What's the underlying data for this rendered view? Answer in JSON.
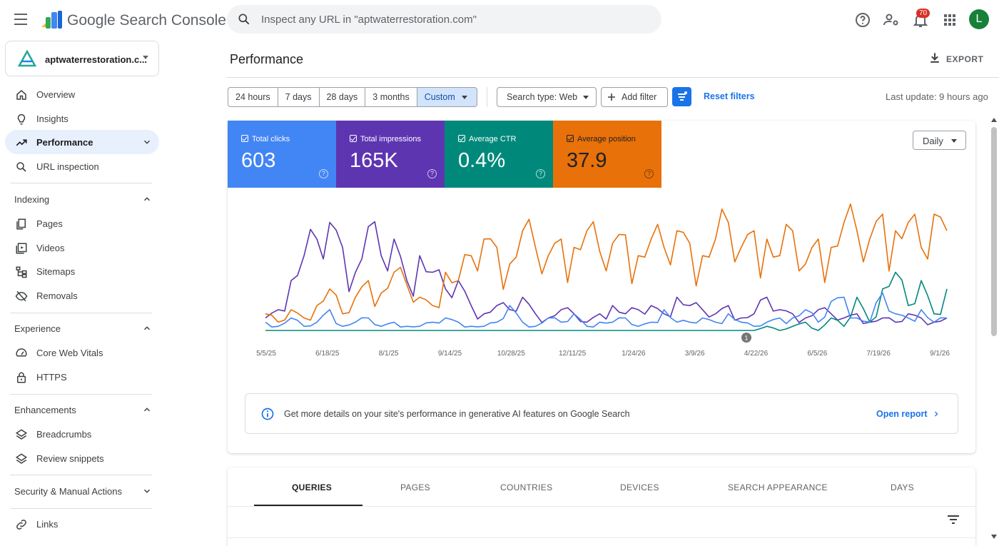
{
  "app": {
    "brand": "Google Search Console"
  },
  "search": {
    "placeholder": "Inspect any URL in \"aptwaterrestoration.com\""
  },
  "header": {
    "notifications_count": "70",
    "avatar_letter": "L"
  },
  "property": {
    "name": "aptwaterrestoration.c..."
  },
  "sidebar": {
    "items": [
      {
        "label": "Overview"
      },
      {
        "label": "Insights"
      },
      {
        "label": "Performance"
      },
      {
        "label": "URL inspection"
      }
    ],
    "indexing": {
      "title": "Indexing",
      "items": [
        {
          "label": "Pages"
        },
        {
          "label": "Videos"
        },
        {
          "label": "Sitemaps"
        },
        {
          "label": "Removals"
        }
      ]
    },
    "experience": {
      "title": "Experience",
      "items": [
        {
          "label": "Core Web Vitals"
        },
        {
          "label": "HTTPS"
        }
      ]
    },
    "enhancements": {
      "title": "Enhancements",
      "items": [
        {
          "label": "Breadcrumbs"
        },
        {
          "label": "Review snippets"
        }
      ]
    },
    "security": {
      "title": "Security & Manual Actions"
    },
    "links": {
      "label": "Links"
    }
  },
  "page": {
    "title": "Performance",
    "export_label": "EXPORT"
  },
  "filters": {
    "ranges": [
      "24 hours",
      "7 days",
      "28 days",
      "3 months",
      "Custom"
    ],
    "search_type": "Search type: Web",
    "add_filter": "Add filter",
    "reset": "Reset filters",
    "last_update": "Last update: 9 hours ago"
  },
  "metrics": [
    {
      "label": "Total clicks",
      "value": "603",
      "color": "#4285f4"
    },
    {
      "label": "Total impressions",
      "value": "165K",
      "color": "#5e35b1"
    },
    {
      "label": "Average CTR",
      "value": "0.4%",
      "color": "#00897b"
    },
    {
      "label": "Average position",
      "value": "37.9",
      "color": "#e8710a"
    }
  ],
  "granularity": "Daily",
  "chart_data": {
    "type": "line",
    "x_ticks": [
      "5/5/25",
      "6/18/25",
      "8/1/25",
      "9/14/25",
      "10/28/25",
      "12/11/25",
      "1/24/26",
      "3/9/26",
      "4/22/26",
      "6/5/26",
      "7/19/26",
      "9/1/26"
    ],
    "annotation": "1",
    "series_colors": [
      "#4285f4",
      "#5e35b1",
      "#00897b",
      "#e8710a"
    ],
    "series": [
      {
        "values": [
          2,
          1,
          3,
          1,
          2,
          5,
          1,
          2,
          3,
          1,
          2,
          1,
          1,
          2,
          3,
          2,
          1,
          1,
          2,
          6,
          2,
          1,
          3,
          2,
          4,
          1,
          2,
          2,
          3,
          1,
          2,
          5,
          2,
          2,
          3,
          2,
          4,
          2,
          1,
          2,
          3,
          3,
          5,
          2,
          7,
          8,
          3,
          2,
          9,
          4,
          3,
          5,
          2,
          3
        ]
      },
      {
        "values": [
          3,
          5,
          12,
          18,
          22,
          26,
          20,
          14,
          25,
          18,
          22,
          12,
          18,
          14,
          10,
          12,
          6,
          4,
          6,
          5,
          8,
          4,
          3,
          5,
          4,
          2,
          4,
          6,
          4,
          5,
          6,
          4,
          8,
          6,
          5,
          4,
          6,
          3,
          4,
          8,
          5,
          4,
          3,
          5,
          4,
          3,
          4,
          2,
          3,
          2,
          4,
          3,
          2,
          3
        ]
      },
      {
        "values": [
          0,
          0,
          0,
          0,
          0,
          0,
          0,
          0,
          0,
          0,
          0,
          0,
          0,
          0,
          0,
          0,
          0,
          0,
          0,
          0,
          0,
          0,
          0,
          0,
          0,
          0,
          0,
          0,
          0,
          0,
          0,
          0,
          0,
          0,
          0,
          0,
          0,
          0,
          0,
          1,
          0,
          1,
          2,
          0,
          3,
          1,
          8,
          2,
          10,
          14,
          6,
          12,
          4,
          10
        ]
      },
      {
        "values": [
          4,
          2,
          5,
          3,
          6,
          10,
          4,
          8,
          12,
          9,
          14,
          11,
          8,
          6,
          14,
          12,
          18,
          22,
          20,
          16,
          24,
          20,
          18,
          22,
          20,
          24,
          19,
          21,
          23,
          18,
          22,
          20,
          24,
          21,
          18,
          22,
          26,
          20,
          24,
          22,
          18,
          24,
          16,
          22,
          20,
          26,
          24,
          22,
          28,
          24,
          26,
          20,
          28,
          24
        ]
      }
    ]
  },
  "info": {
    "text": "Get more details on your site's performance in generative AI features on Google Search",
    "link": "Open report"
  },
  "tabs": [
    "QUERIES",
    "PAGES",
    "COUNTRIES",
    "DEVICES",
    "SEARCH APPEARANCE",
    "DAYS"
  ]
}
